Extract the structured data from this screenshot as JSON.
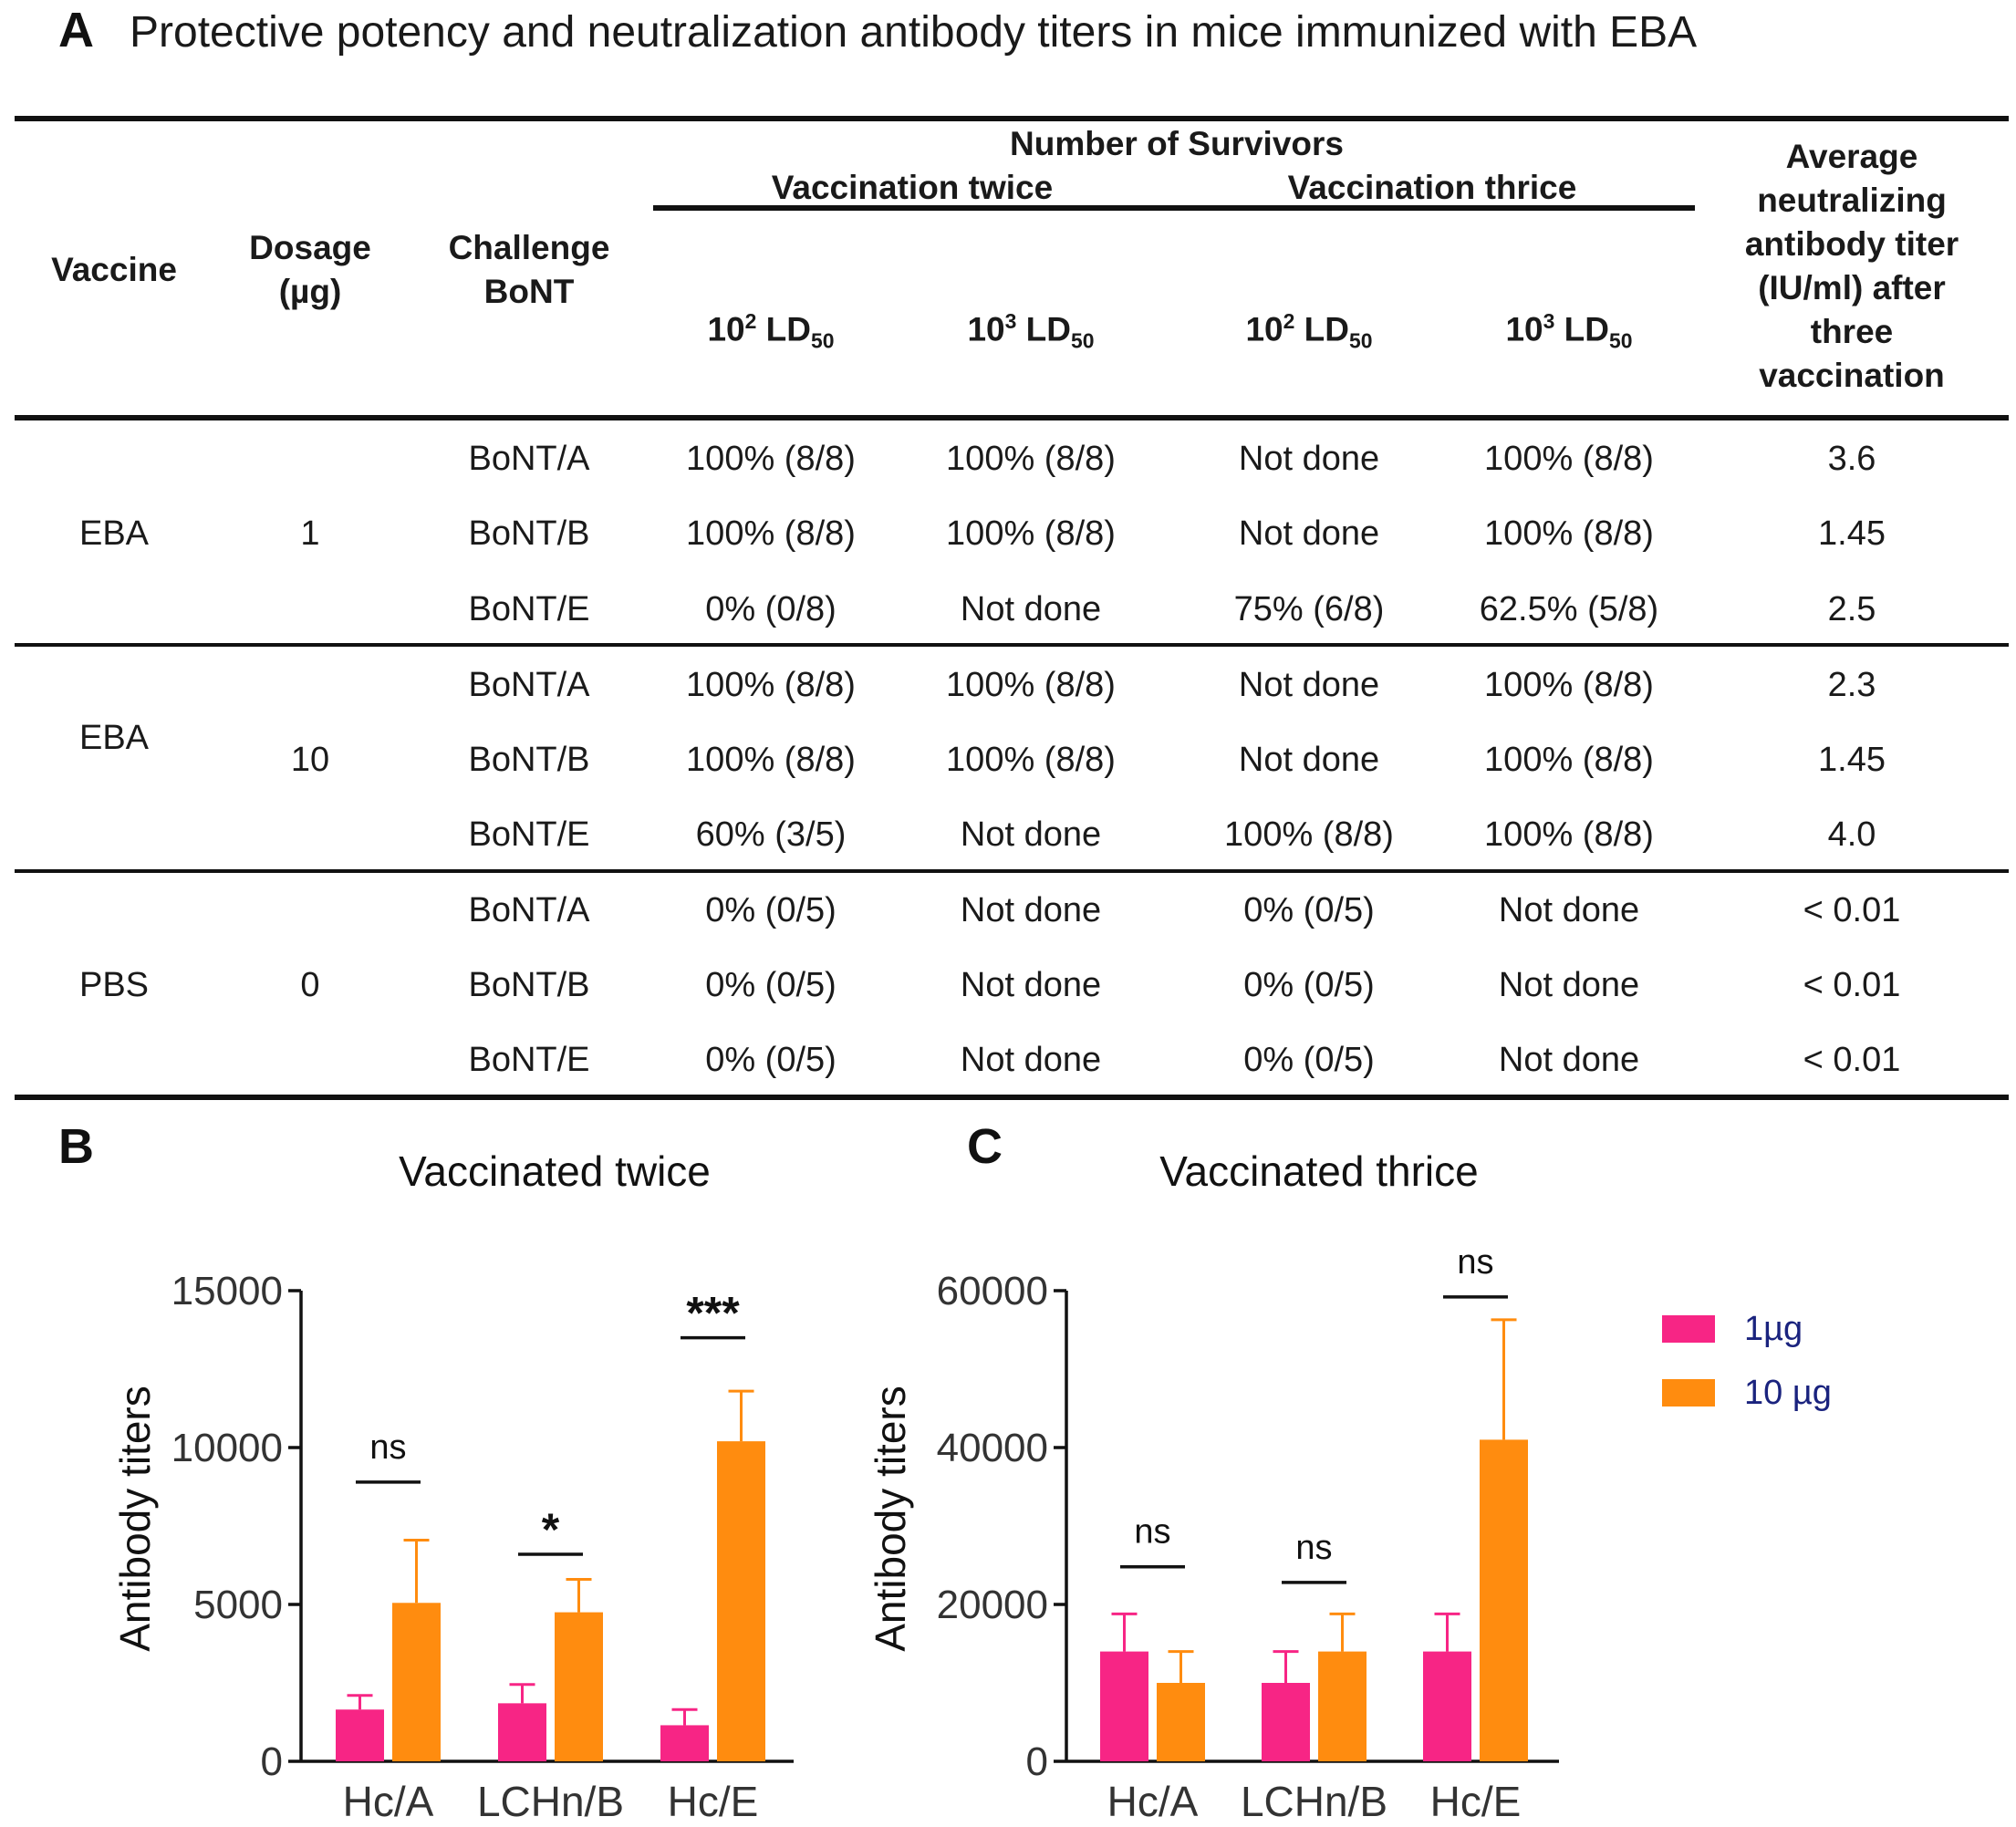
{
  "panel_a": {
    "letter": "A",
    "title": "Protective potency and neutralization antibody titers in mice immunized with EBA",
    "headers": {
      "vaccine": "Vaccine",
      "dosage_line1": "Dosage",
      "dosage_line2": "(µg)",
      "challenge_line1": "Challenge",
      "challenge_line2": "BoNT",
      "survivors": "Number of Survivors",
      "twice": "Vaccination twice",
      "thrice": "Vaccination thrice",
      "ld_a": "10",
      "ld_a_exp": "2",
      "ld_b": "10",
      "ld_b_exp": "3",
      "ld_text": " LD",
      "ld_sub": "50",
      "avg_lines": [
        "Average",
        "neutralizing",
        "antibody titer",
        "(IU/ml) after",
        "three",
        "vaccination"
      ]
    },
    "groups": [
      {
        "vaccine": "EBA",
        "dosage": "1",
        "rows": [
          {
            "challenge": "BoNT/A",
            "t2_e2": "100% (8/8)",
            "t2_e3": "100% (8/8)",
            "t3_e2": "Not done",
            "t3_e3": "100% (8/8)",
            "avg": "3.6"
          },
          {
            "challenge": "BoNT/B",
            "t2_e2": "100% (8/8)",
            "t2_e3": "100% (8/8)",
            "t3_e2": "Not done",
            "t3_e3": "100% (8/8)",
            "avg": "1.45"
          },
          {
            "challenge": "BoNT/E",
            "t2_e2": "0% (0/8)",
            "t2_e3": "Not done",
            "t3_e2": "75% (6/8)",
            "t3_e3": "62.5% (5/8)",
            "avg": "2.5"
          }
        ]
      },
      {
        "vaccine": "EBA",
        "dosage": "10",
        "rows": [
          {
            "challenge": "BoNT/A",
            "t2_e2": "100% (8/8)",
            "t2_e3": "100% (8/8)",
            "t3_e2": "Not done",
            "t3_e3": "100% (8/8)",
            "avg": "2.3"
          },
          {
            "challenge": "BoNT/B",
            "t2_e2": "100% (8/8)",
            "t2_e3": "100% (8/8)",
            "t3_e2": "Not done",
            "t3_e3": "100% (8/8)",
            "avg": "1.45"
          },
          {
            "challenge": "BoNT/E",
            "t2_e2": "60% (3/5)",
            "t2_e3": "Not done",
            "t3_e2": "100% (8/8)",
            "t3_e3": "100% (8/8)",
            "avg": "4.0"
          }
        ]
      },
      {
        "vaccine": "PBS",
        "dosage": "0",
        "rows": [
          {
            "challenge": "BoNT/A",
            "t2_e2": "0% (0/5)",
            "t2_e3": "Not done",
            "t3_e2": "0% (0/5)",
            "t3_e3": "Not done",
            "avg": "< 0.01"
          },
          {
            "challenge": "BoNT/B",
            "t2_e2": "0% (0/5)",
            "t2_e3": "Not done",
            "t3_e2": "0% (0/5)",
            "t3_e3": "Not done",
            "avg": "< 0.01"
          },
          {
            "challenge": "BoNT/E",
            "t2_e2": "0% (0/5)",
            "t2_e3": "Not done",
            "t3_e2": "0% (0/5)",
            "t3_e3": "Not done",
            "avg": "< 0.01"
          }
        ]
      }
    ]
  },
  "legend": {
    "items": [
      {
        "label": "1µg",
        "color": "#f72585"
      },
      {
        "label": "10 µg",
        "color": "#ff8c0f"
      }
    ],
    "text_color": "#1a237e"
  },
  "chart_data": [
    {
      "panel": "B",
      "type": "bar",
      "title": "Vaccinated twice",
      "xlabel": "",
      "ylabel": "Antibody titers",
      "ylim": [
        0,
        15000
      ],
      "yticks": [
        "0",
        "5000",
        "10000",
        "15000"
      ],
      "categories": [
        "Hc/A",
        "LCHn/B",
        "Hc/E"
      ],
      "series": [
        {
          "name": "1µg",
          "color": "#f72585",
          "values": [
            1650,
            1850,
            1150
          ],
          "errors": [
            450,
            600,
            500
          ]
        },
        {
          "name": "10 µg",
          "color": "#ff8c0f",
          "values": [
            5050,
            4750,
            10200
          ],
          "errors": [
            2000,
            1050,
            1600
          ]
        }
      ],
      "significance": [
        {
          "category": "Hc/A",
          "label": "ns",
          "level": 8900
        },
        {
          "category": "LCHn/B",
          "label": "*",
          "level": 6600
        },
        {
          "category": "Hc/E",
          "label": "***",
          "level": 13500
        }
      ]
    },
    {
      "panel": "C",
      "type": "bar",
      "title": "Vaccinated thrice",
      "xlabel": "",
      "ylabel": "Antibody titers",
      "ylim": [
        0,
        60000
      ],
      "yticks": [
        "0",
        "20000",
        "40000",
        "60000"
      ],
      "categories": [
        "Hc/A",
        "LCHn/B",
        "Hc/E"
      ],
      "series": [
        {
          "name": "1µg",
          "color": "#f72585",
          "values": [
            14000,
            10000,
            14000
          ],
          "errors": [
            4800,
            4000,
            4800
          ]
        },
        {
          "name": "10 µg",
          "color": "#ff8c0f",
          "values": [
            10000,
            14000,
            41000
          ],
          "errors": [
            4000,
            4800,
            15300
          ]
        }
      ],
      "significance": [
        {
          "category": "Hc/A",
          "label": "ns",
          "level": 24800
        },
        {
          "category": "LCHn/B",
          "label": "ns",
          "level": 22800
        },
        {
          "category": "Hc/E",
          "label": "ns",
          "level": 59200
        }
      ]
    }
  ]
}
